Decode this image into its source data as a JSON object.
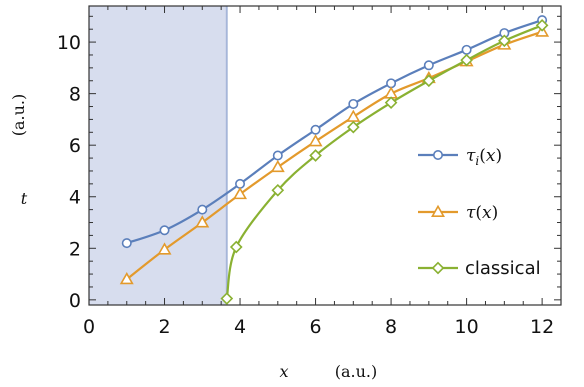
{
  "chart_data": {
    "type": "line",
    "xlabel_var": "x",
    "xlabel_unit": "(a.u.)",
    "ylabel_var": "t",
    "ylabel_unit": "(a.u.)",
    "xlim": [
      0,
      12.5
    ],
    "ylim": [
      -0.2,
      11.4
    ],
    "xticks": [
      0,
      2,
      4,
      6,
      8,
      10,
      12
    ],
    "yticks": [
      0,
      2,
      4,
      6,
      8,
      10
    ],
    "grid": false,
    "shaded_region": {
      "x_from": 0,
      "x_to": 3.65,
      "color": "#c9d1e8",
      "edge_color": "#8fa3cf"
    },
    "legend_position": "right",
    "series": [
      {
        "name": "τ_i(x)",
        "label_main": "τ",
        "label_sub": "i",
        "label_tail": "(x)",
        "color": "#5b7fbb",
        "marker": "circle",
        "x": [
          1,
          2,
          3,
          4,
          5,
          6,
          7,
          8,
          9,
          10,
          11,
          12
        ],
        "y": [
          2.2,
          2.7,
          3.5,
          4.5,
          5.6,
          6.6,
          7.6,
          8.4,
          9.1,
          9.7,
          10.35,
          10.85
        ]
      },
      {
        "name": "τ(x)",
        "label_main": "τ",
        "label_sub": "",
        "label_tail": "(x)",
        "color": "#e39a2c",
        "marker": "triangle",
        "x": [
          1,
          2,
          3,
          4,
          5,
          6,
          7,
          8,
          9,
          10,
          11,
          12
        ],
        "y": [
          0.8,
          1.95,
          3.0,
          4.1,
          5.15,
          6.15,
          7.1,
          8.0,
          8.6,
          9.25,
          9.9,
          10.4
        ]
      },
      {
        "name": "classical",
        "label_main": "classical",
        "label_sub": "",
        "label_tail": "",
        "color": "#8ab132",
        "marker": "diamond",
        "x": [
          3.65,
          3.9,
          5,
          6,
          7,
          8,
          9,
          10,
          11,
          12
        ],
        "y": [
          0.05,
          2.05,
          4.25,
          5.6,
          6.7,
          7.65,
          8.5,
          9.3,
          10.05,
          10.65
        ]
      }
    ]
  }
}
